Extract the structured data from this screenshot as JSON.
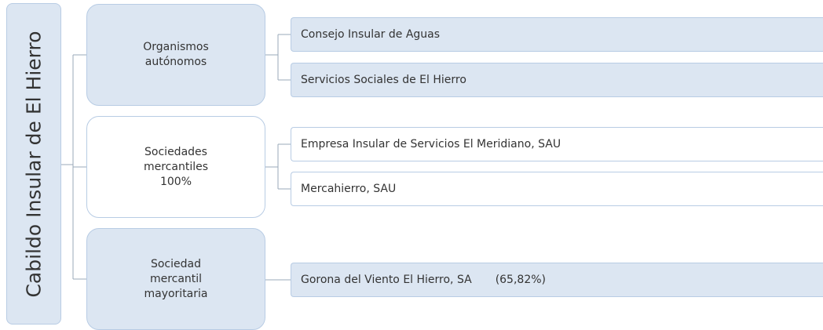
{
  "root": {
    "label": "Cabildo Insular de El Hierro"
  },
  "groups": [
    {
      "label": "Organismos autónomos",
      "children": [
        {
          "label": "Consejo Insular de Aguas"
        },
        {
          "label": "Servicios Sociales de El Hierro"
        }
      ]
    },
    {
      "label": "Sociedades mercantiles 100%",
      "children": [
        {
          "label": "Empresa Insular de Servicios El Meridiano, SAU"
        },
        {
          "label": "Mercahierro, SAU"
        }
      ]
    },
    {
      "label": "Sociedad mercantil mayoritaria",
      "children": [
        {
          "label": "Gorona del Viento El Hierro, SA",
          "note": "(65,82%)"
        }
      ]
    }
  ]
}
